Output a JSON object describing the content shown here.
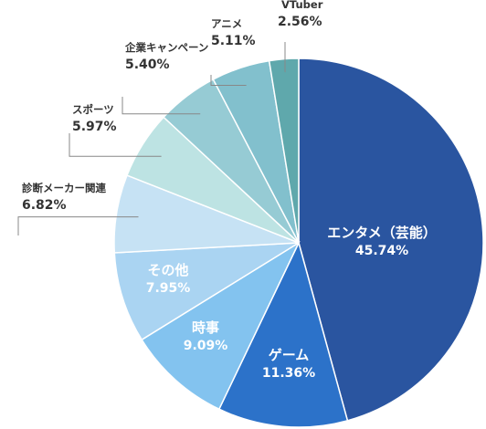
{
  "chart_data": {
    "type": "pie",
    "title": "",
    "slices": [
      {
        "label": "エンタメ（芸能）",
        "value": 45.74,
        "value_label": "45.74%",
        "color": "#2a55a0",
        "text_color": "#ffffff"
      },
      {
        "label": "ゲーム",
        "value": 11.36,
        "value_label": "11.36%",
        "color": "#2c72c9",
        "text_color": "#ffffff"
      },
      {
        "label": "時事",
        "value": 9.09,
        "value_label": "9.09%",
        "color": "#83c3ef",
        "text_color": "#ffffff"
      },
      {
        "label": "その他",
        "value": 7.95,
        "value_label": "7.95%",
        "color": "#aad4f2",
        "text_color": "#ffffff"
      },
      {
        "label": "診断メーカー関連",
        "value": 6.82,
        "value_label": "6.82%",
        "color": "#c6e2f4",
        "text_color": "#333333"
      },
      {
        "label": "スポーツ",
        "value": 5.97,
        "value_label": "5.97%",
        "color": "#bde3e3",
        "text_color": "#333333"
      },
      {
        "label": "企業キャンペーン",
        "value": 5.4,
        "value_label": "5.40%",
        "color": "#96cbd4",
        "text_color": "#333333"
      },
      {
        "label": "アニメ",
        "value": 5.11,
        "value_label": "5.11%",
        "color": "#82c0cd",
        "text_color": "#333333"
      },
      {
        "label": "VTuber",
        "value": 2.56,
        "value_label": "2.56%",
        "color": "#5fa8ac",
        "text_color": "#333333"
      }
    ],
    "legend": "none"
  }
}
